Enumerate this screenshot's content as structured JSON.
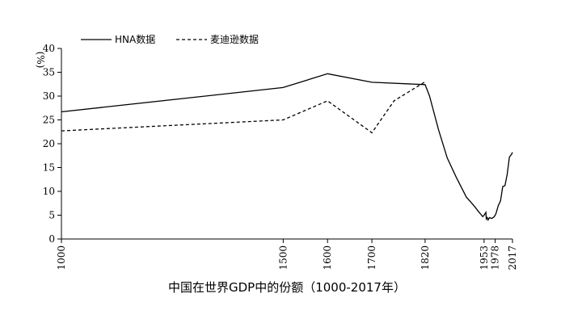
{
  "chart_data": {
    "type": "line",
    "caption": "中国在世界GDP中的份额（1000-2017年）",
    "y_unit": "(%)",
    "ylim": [
      0,
      40
    ],
    "y_ticks": [
      "0",
      "5",
      "10",
      "15",
      "20",
      "25",
      "30",
      "35",
      "40"
    ],
    "xlim": [
      1000,
      2017
    ],
    "x_ticks": [
      "1000",
      "1500",
      "1600",
      "1700",
      "1820",
      "1953",
      "1978",
      "2017"
    ],
    "legend_position": "top-left",
    "grid": false,
    "series": [
      {
        "name": "HNA数据",
        "style": "solid",
        "x": [
          1000,
          1500,
          1600,
          1700,
          1820,
          1830,
          1850,
          1870,
          1890,
          1913,
          1930,
          1940,
          1950,
          1953,
          1955,
          1957,
          1958,
          1960,
          1962,
          1965,
          1970,
          1975,
          1978,
          1980,
          1985,
          1990,
          1995,
          2000,
          2005,
          2010,
          2015,
          2017
        ],
        "values": [
          26.7,
          31.8,
          34.7,
          32.9,
          32.4,
          30,
          23,
          17,
          13,
          8.8,
          7,
          5.8,
          4.7,
          5,
          5.3,
          5.6,
          4.2,
          4.5,
          4,
          4.5,
          4.3,
          4.6,
          5,
          5.4,
          7,
          8,
          11,
          11.2,
          13.5,
          17.2,
          17.8,
          18.2
        ]
      },
      {
        "name": "麦迪逊数据",
        "style": "dashed",
        "x": [
          1000,
          1500,
          1600,
          1700,
          1750,
          1820
        ],
        "values": [
          22.7,
          25,
          29,
          22.3,
          29,
          33
        ]
      }
    ]
  }
}
